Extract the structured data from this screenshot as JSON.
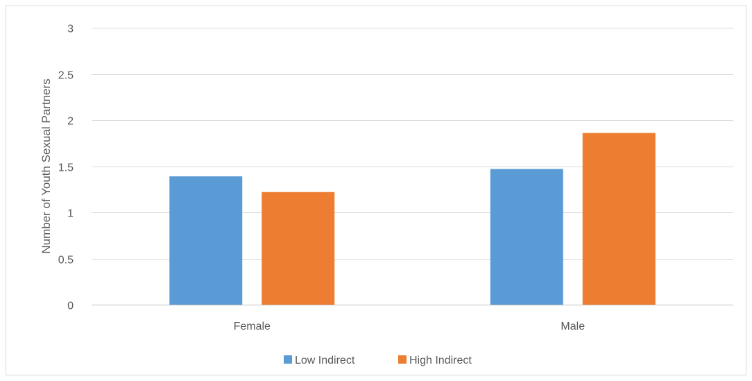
{
  "chart_data": {
    "type": "bar",
    "title": "",
    "xlabel": "",
    "ylabel": "Number of Youth Sexual Partners",
    "categories": [
      "Female",
      "Male"
    ],
    "series": [
      {
        "name": "Low Indirect",
        "values": [
          1.39,
          1.47
        ],
        "color": "#5b9bd5"
      },
      {
        "name": "High Indirect",
        "values": [
          1.22,
          1.86
        ],
        "color": "#ed7d31"
      }
    ],
    "ylim": [
      0,
      3
    ],
    "yticks": [
      0,
      0.5,
      1,
      1.5,
      2,
      2.5,
      3
    ],
    "ytick_labels": [
      "0",
      "0.5",
      "1",
      "1.5",
      "2",
      "2.5",
      "3"
    ],
    "grid": true,
    "legend_position": "bottom"
  }
}
